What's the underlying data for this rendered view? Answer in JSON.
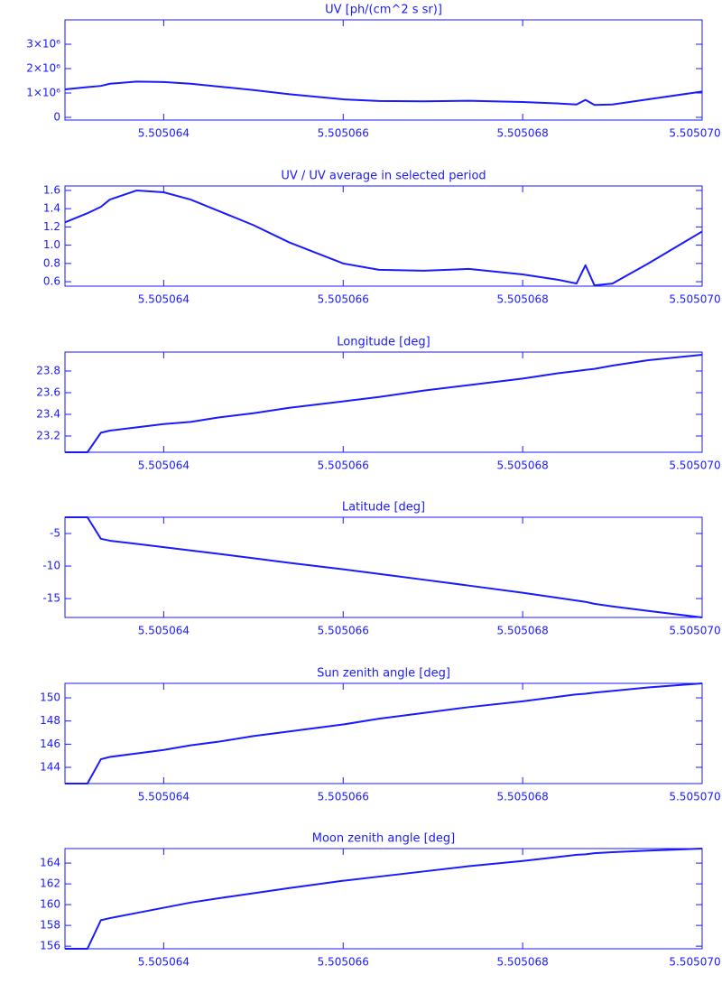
{
  "chart_data": [
    {
      "type": "line",
      "title": "UV [ph/(cm^2 s sr)]",
      "color": "#1a1aff",
      "x": [
        5.5050629,
        5.50506315,
        5.5050633,
        5.5050634,
        5.5050637,
        5.505064,
        5.5050643,
        5.5050646,
        5.505065,
        5.5050654,
        5.505066,
        5.5050664,
        5.5050669,
        5.5050674,
        5.505068,
        5.5050684,
        5.5050686,
        5.5050687,
        5.5050688,
        5.505069,
        5.5050694,
        5.50507
      ],
      "values": [
        1150000,
        1240000,
        1290000,
        1380000,
        1470000,
        1450000,
        1380000,
        1270000,
        1120000,
        950000,
        740000,
        670000,
        660000,
        680000,
        630000,
        570000,
        530000,
        720000,
        510000,
        530000,
        740000,
        1060000
      ],
      "xlim": [
        5.5050629,
        5.50507
      ],
      "xticks": [
        5.505064,
        5.505066,
        5.505068,
        {
          "value": 5.50507,
          "label": "5.505070"
        }
      ],
      "ylim": [
        -110000,
        4000000
      ],
      "yticks": [
        0,
        {
          "value": 1000000,
          "label": "1×10⁶"
        },
        {
          "value": 2000000,
          "label": "2×10⁶"
        },
        {
          "value": 3000000,
          "label": "3×10⁶"
        }
      ]
    },
    {
      "type": "line",
      "title": "UV / UV average in selected period",
      "color": "#1a1aff",
      "x": [
        5.5050629,
        5.50506315,
        5.5050633,
        5.5050634,
        5.5050637,
        5.505064,
        5.5050643,
        5.5050646,
        5.505065,
        5.5050654,
        5.505066,
        5.5050664,
        5.5050669,
        5.5050674,
        5.505068,
        5.5050684,
        5.5050686,
        5.5050687,
        5.5050688,
        5.505069,
        5.5050694,
        5.50507
      ],
      "values": [
        1.25,
        1.35,
        1.42,
        1.5,
        1.6,
        1.58,
        1.5,
        1.38,
        1.22,
        1.03,
        0.8,
        0.73,
        0.72,
        0.74,
        0.68,
        0.62,
        0.58,
        0.78,
        0.56,
        0.58,
        0.8,
        1.15
      ],
      "xlim": [
        5.5050629,
        5.50507
      ],
      "xticks": [
        5.505064,
        5.505066,
        5.505068,
        {
          "value": 5.50507,
          "label": "5.505070"
        }
      ],
      "ylim": [
        0.551,
        1.649
      ],
      "yticks": [
        0.6,
        0.8,
        {
          "value": 1,
          "label": "1.0"
        },
        1.2,
        1.4,
        1.6
      ]
    },
    {
      "type": "line",
      "title": "Longitude [deg]",
      "color": "#1a1aff",
      "x": [
        5.5050629,
        5.50506315,
        5.5050633,
        5.5050634,
        5.5050637,
        5.505064,
        5.5050643,
        5.5050646,
        5.505065,
        5.5050654,
        5.505066,
        5.5050664,
        5.5050669,
        5.5050674,
        5.505068,
        5.5050684,
        5.5050686,
        5.5050687,
        5.5050688,
        5.505069,
        5.5050694,
        5.50507
      ],
      "values": [
        23.05,
        23.05,
        23.23,
        23.25,
        23.28,
        23.31,
        23.33,
        23.37,
        23.41,
        23.46,
        23.52,
        23.56,
        23.62,
        23.67,
        23.73,
        23.78,
        23.8,
        23.81,
        23.82,
        23.85,
        23.9,
        23.95
      ],
      "xlim": [
        5.5050629,
        5.50507
      ],
      "xticks": [
        5.505064,
        5.505066,
        5.505068,
        {
          "value": 5.50507,
          "label": "5.505070"
        }
      ],
      "ylim": [
        23.05,
        23.975
      ],
      "yticks": [
        23.2,
        23.4,
        23.6,
        23.8
      ]
    },
    {
      "type": "line",
      "title": "Latitude [deg]",
      "color": "#1a1aff",
      "x": [
        5.5050629,
        5.50506315,
        5.5050633,
        5.5050634,
        5.5050637,
        5.505064,
        5.5050643,
        5.5050646,
        5.505065,
        5.5050654,
        5.505066,
        5.5050664,
        5.5050669,
        5.5050674,
        5.505068,
        5.5050684,
        5.5050686,
        5.5050687,
        5.5050688,
        5.505069,
        5.5050694,
        5.50507
      ],
      "values": [
        -2.5,
        -2.5,
        -5.8,
        -6.1,
        -6.6,
        -7.1,
        -7.6,
        -8.1,
        -8.8,
        -9.5,
        -10.5,
        -11.2,
        -12.1,
        -13,
        -14.1,
        -14.9,
        -15.3,
        -15.5,
        -15.8,
        -16.2,
        -16.9,
        -17.9
      ],
      "xlim": [
        5.5050629,
        5.50507
      ],
      "xticks": [
        5.505064,
        5.505066,
        5.505068,
        {
          "value": 5.50507,
          "label": "5.505070"
        }
      ],
      "ylim": [
        -17.9,
        -2.5
      ],
      "yticks": [
        -15,
        -10,
        -5
      ]
    },
    {
      "type": "line",
      "title": "Sun zenith angle [deg]",
      "color": "#1a1aff",
      "x": [
        5.5050629,
        5.50506315,
        5.5050633,
        5.5050634,
        5.5050637,
        5.505064,
        5.5050643,
        5.5050646,
        5.505065,
        5.5050654,
        5.505066,
        5.5050664,
        5.5050669,
        5.5050674,
        5.505068,
        5.5050684,
        5.5050686,
        5.5050687,
        5.5050688,
        5.505069,
        5.5050694,
        5.50507
      ],
      "values": [
        142.6,
        142.6,
        144.7,
        144.9,
        145.2,
        145.5,
        145.9,
        146.2,
        146.7,
        147.1,
        147.7,
        148.2,
        148.7,
        149.2,
        149.7,
        150.1,
        150.3,
        150.35,
        150.45,
        150.6,
        150.9,
        151.25
      ],
      "xlim": [
        5.5050629,
        5.50507
      ],
      "xticks": [
        5.505064,
        5.505066,
        5.505068,
        {
          "value": 5.50507,
          "label": "5.505070"
        }
      ],
      "ylim": [
        142.6,
        151.25
      ],
      "yticks": [
        144,
        146,
        148,
        150
      ]
    },
    {
      "type": "line",
      "title": "Moon zenith angle [deg]",
      "color": "#1a1aff",
      "x": [
        5.5050629,
        5.50506315,
        5.5050633,
        5.5050634,
        5.5050637,
        5.505064,
        5.5050643,
        5.5050646,
        5.505065,
        5.5050654,
        5.505066,
        5.5050664,
        5.5050669,
        5.5050674,
        5.505068,
        5.5050684,
        5.5050686,
        5.5050687,
        5.5050688,
        5.505069,
        5.5050694,
        5.50507
      ],
      "values": [
        155.75,
        155.75,
        158.5,
        158.7,
        159.2,
        159.7,
        160.2,
        160.6,
        161.1,
        161.6,
        162.3,
        162.7,
        163.2,
        163.7,
        164.2,
        164.6,
        164.8,
        164.85,
        164.95,
        165.05,
        165.2,
        165.4
      ],
      "xlim": [
        5.5050629,
        5.50507
      ],
      "xticks": [
        5.505064,
        5.505066,
        5.505068,
        {
          "value": 5.50507,
          "label": "5.505070"
        }
      ],
      "ylim": [
        155.75,
        165.4
      ],
      "yticks": [
        156,
        158,
        160,
        162,
        164
      ]
    }
  ]
}
